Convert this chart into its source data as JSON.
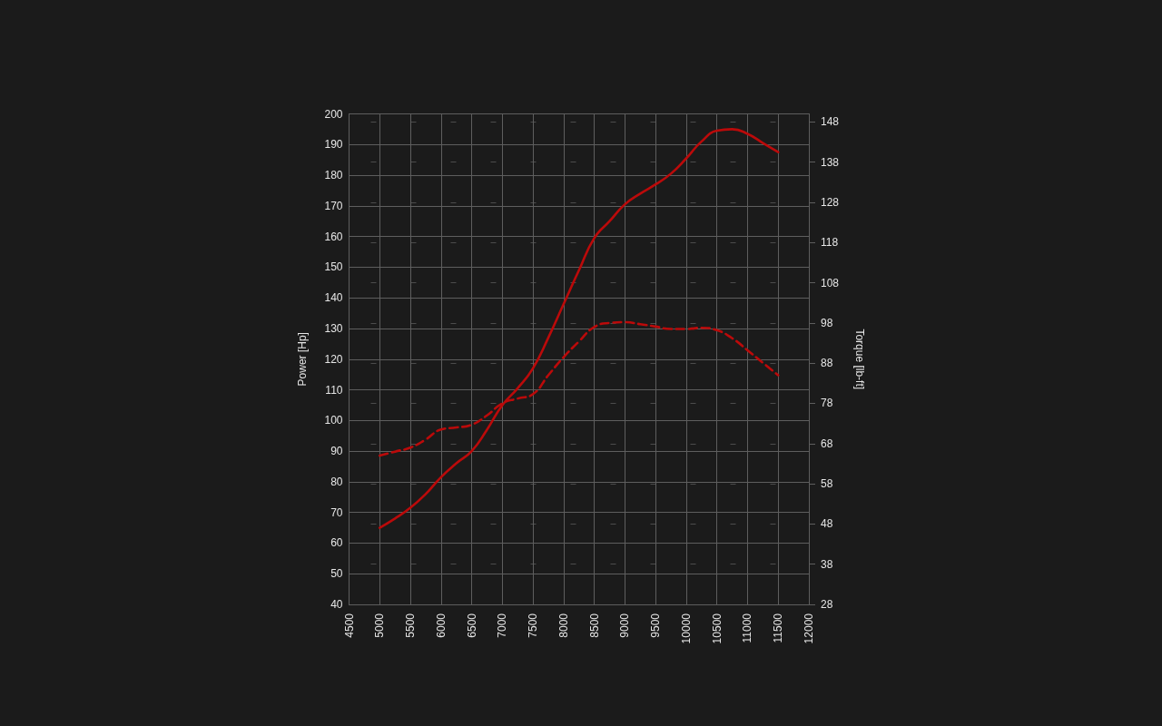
{
  "chart_data": {
    "type": "line",
    "ylabel": "Power [Hp]",
    "y2label": "Torque [lb-ft]",
    "x": [
      5000,
      5250,
      5500,
      5750,
      6000,
      6250,
      6500,
      6750,
      7000,
      7250,
      7500,
      7750,
      8000,
      8250,
      8500,
      8750,
      9000,
      9250,
      9500,
      9750,
      10000,
      10250,
      10500,
      10750,
      11000,
      11250,
      11500
    ],
    "series": [
      {
        "color": "#bb0a0a",
        "line_style": "solid",
        "values": [
          65,
          68,
          71.5,
          76,
          81.5,
          86,
          90,
          97,
          105,
          110.5,
          117,
          127,
          138,
          149,
          159.5,
          165,
          170.5,
          174,
          177,
          180.5,
          185.5,
          191,
          194.5,
          195,
          193.5,
          190.5,
          187.5
        ]
      },
      {
        "color": "#bb0a0a",
        "line_style": "dashed",
        "axis": "y2",
        "values": [
          65,
          66,
          67,
          69,
          71.5,
          72,
          72.7,
          75,
          78,
          79.2,
          80.3,
          85,
          89.5,
          93.4,
          97,
          98,
          98.2,
          97.7,
          97.1,
          96.5,
          96.5,
          96.8,
          96.2,
          94.2,
          91.2,
          88.1,
          85
        ]
      }
    ],
    "xlim": [
      4500,
      12000
    ],
    "xticks": [
      4500,
      5000,
      5500,
      6000,
      6500,
      7000,
      7500,
      8000,
      8500,
      9000,
      9500,
      10000,
      10500,
      11000,
      11500,
      12000
    ],
    "ylim": [
      40,
      200
    ],
    "yticks": [
      40,
      50,
      60,
      70,
      80,
      90,
      100,
      110,
      120,
      130,
      140,
      150,
      160,
      170,
      180,
      190,
      200
    ],
    "y2lim": [
      28,
      150
    ],
    "y2ticks": [
      28,
      38,
      48,
      58,
      68,
      78,
      88,
      98,
      108,
      118,
      128,
      138,
      148
    ],
    "grid": true,
    "marker": "none"
  }
}
